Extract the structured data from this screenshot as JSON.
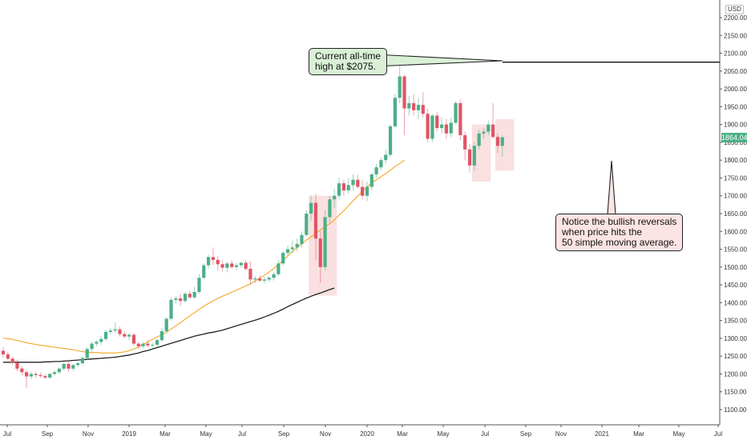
{
  "chart_data": {
    "type": "candlestick",
    "currency_badge": "USD",
    "last_price_label": "1864.04",
    "colors": {
      "up": "#4caf86",
      "down": "#e05567",
      "ma50": "#f5a623",
      "ma200": "#222222",
      "ath_line": "#111111",
      "highlight": "#f6c7c7",
      "price_tag": "#4caf86"
    },
    "y_ticks": [
      "2200.00",
      "2150.00",
      "2100.00",
      "2050.00",
      "2000.00",
      "1950.00",
      "1900.00",
      "1850.00",
      "1800.00",
      "1750.00",
      "1700.00",
      "1650.00",
      "1600.00",
      "1550.00",
      "1500.00",
      "1450.00",
      "1400.00",
      "1350.00",
      "1300.00",
      "1250.00",
      "1200.00",
      "1150.00",
      "1100.00"
    ],
    "x_ticks": [
      "Jul",
      "Sep",
      "Nov",
      "2019",
      "Mar",
      "May",
      "Jul",
      "Sep",
      "Nov",
      "2020",
      "Mar",
      "May",
      "Jul",
      "Sep",
      "Nov",
      "2021",
      "Mar",
      "May",
      "Jul"
    ],
    "ylim": [
      1070,
      2235
    ],
    "all_time_high": 2075,
    "candles": [
      {
        "o": 1265,
        "h": 1275,
        "l": 1245,
        "c": 1255
      },
      {
        "o": 1255,
        "h": 1262,
        "l": 1238,
        "c": 1243
      },
      {
        "o": 1243,
        "h": 1248,
        "l": 1225,
        "c": 1232
      },
      {
        "o": 1232,
        "h": 1240,
        "l": 1208,
        "c": 1215
      },
      {
        "o": 1215,
        "h": 1222,
        "l": 1196,
        "c": 1205
      },
      {
        "o": 1205,
        "h": 1213,
        "l": 1160,
        "c": 1193
      },
      {
        "o": 1193,
        "h": 1208,
        "l": 1185,
        "c": 1200
      },
      {
        "o": 1200,
        "h": 1206,
        "l": 1188,
        "c": 1197
      },
      {
        "o": 1197,
        "h": 1204,
        "l": 1190,
        "c": 1194
      },
      {
        "o": 1194,
        "h": 1200,
        "l": 1186,
        "c": 1190
      },
      {
        "o": 1190,
        "h": 1204,
        "l": 1186,
        "c": 1200
      },
      {
        "o": 1200,
        "h": 1210,
        "l": 1195,
        "c": 1205
      },
      {
        "o": 1205,
        "h": 1218,
        "l": 1200,
        "c": 1215
      },
      {
        "o": 1215,
        "h": 1233,
        "l": 1210,
        "c": 1228
      },
      {
        "o": 1228,
        "h": 1240,
        "l": 1205,
        "c": 1215
      },
      {
        "o": 1215,
        "h": 1228,
        "l": 1208,
        "c": 1225
      },
      {
        "o": 1225,
        "h": 1236,
        "l": 1220,
        "c": 1230
      },
      {
        "o": 1230,
        "h": 1250,
        "l": 1225,
        "c": 1245
      },
      {
        "o": 1245,
        "h": 1275,
        "l": 1240,
        "c": 1270
      },
      {
        "o": 1270,
        "h": 1290,
        "l": 1262,
        "c": 1285
      },
      {
        "o": 1285,
        "h": 1295,
        "l": 1278,
        "c": 1290
      },
      {
        "o": 1290,
        "h": 1305,
        "l": 1282,
        "c": 1298
      },
      {
        "o": 1298,
        "h": 1325,
        "l": 1292,
        "c": 1318
      },
      {
        "o": 1318,
        "h": 1330,
        "l": 1310,
        "c": 1322
      },
      {
        "o": 1322,
        "h": 1345,
        "l": 1315,
        "c": 1325
      },
      {
        "o": 1325,
        "h": 1332,
        "l": 1305,
        "c": 1312
      },
      {
        "o": 1312,
        "h": 1320,
        "l": 1300,
        "c": 1305
      },
      {
        "o": 1305,
        "h": 1315,
        "l": 1295,
        "c": 1310
      },
      {
        "o": 1310,
        "h": 1315,
        "l": 1280,
        "c": 1285
      },
      {
        "o": 1285,
        "h": 1290,
        "l": 1270,
        "c": 1278
      },
      {
        "o": 1278,
        "h": 1290,
        "l": 1272,
        "c": 1285
      },
      {
        "o": 1285,
        "h": 1295,
        "l": 1275,
        "c": 1280
      },
      {
        "o": 1280,
        "h": 1288,
        "l": 1270,
        "c": 1282
      },
      {
        "o": 1282,
        "h": 1300,
        "l": 1276,
        "c": 1295
      },
      {
        "o": 1295,
        "h": 1330,
        "l": 1290,
        "c": 1320
      },
      {
        "o": 1320,
        "h": 1360,
        "l": 1315,
        "c": 1355
      },
      {
        "o": 1355,
        "h": 1415,
        "l": 1350,
        "c": 1408
      },
      {
        "o": 1408,
        "h": 1420,
        "l": 1398,
        "c": 1412
      },
      {
        "o": 1412,
        "h": 1425,
        "l": 1392,
        "c": 1405
      },
      {
        "o": 1405,
        "h": 1430,
        "l": 1400,
        "c": 1425
      },
      {
        "o": 1425,
        "h": 1435,
        "l": 1410,
        "c": 1415
      },
      {
        "o": 1415,
        "h": 1445,
        "l": 1410,
        "c": 1430
      },
      {
        "o": 1430,
        "h": 1480,
        "l": 1425,
        "c": 1470
      },
      {
        "o": 1470,
        "h": 1510,
        "l": 1465,
        "c": 1505
      },
      {
        "o": 1505,
        "h": 1535,
        "l": 1495,
        "c": 1528
      },
      {
        "o": 1528,
        "h": 1555,
        "l": 1505,
        "c": 1520
      },
      {
        "o": 1520,
        "h": 1530,
        "l": 1490,
        "c": 1508
      },
      {
        "o": 1508,
        "h": 1520,
        "l": 1488,
        "c": 1498
      },
      {
        "o": 1498,
        "h": 1515,
        "l": 1485,
        "c": 1510
      },
      {
        "o": 1510,
        "h": 1520,
        "l": 1495,
        "c": 1500
      },
      {
        "o": 1500,
        "h": 1512,
        "l": 1492,
        "c": 1505
      },
      {
        "o": 1505,
        "h": 1515,
        "l": 1498,
        "c": 1512
      },
      {
        "o": 1512,
        "h": 1520,
        "l": 1490,
        "c": 1495
      },
      {
        "o": 1495,
        "h": 1515,
        "l": 1450,
        "c": 1465
      },
      {
        "o": 1465,
        "h": 1475,
        "l": 1455,
        "c": 1468
      },
      {
        "o": 1468,
        "h": 1478,
        "l": 1458,
        "c": 1462
      },
      {
        "o": 1462,
        "h": 1472,
        "l": 1455,
        "c": 1465
      },
      {
        "o": 1465,
        "h": 1475,
        "l": 1458,
        "c": 1470
      },
      {
        "o": 1470,
        "h": 1485,
        "l": 1462,
        "c": 1480
      },
      {
        "o": 1480,
        "h": 1520,
        "l": 1475,
        "c": 1510
      },
      {
        "o": 1510,
        "h": 1545,
        "l": 1505,
        "c": 1540
      },
      {
        "o": 1540,
        "h": 1560,
        "l": 1530,
        "c": 1550
      },
      {
        "o": 1550,
        "h": 1575,
        "l": 1540,
        "c": 1555
      },
      {
        "o": 1555,
        "h": 1580,
        "l": 1545,
        "c": 1565
      },
      {
        "o": 1565,
        "h": 1600,
        "l": 1555,
        "c": 1590
      },
      {
        "o": 1590,
        "h": 1660,
        "l": 1585,
        "c": 1650
      },
      {
        "o": 1650,
        "h": 1700,
        "l": 1630,
        "c": 1680
      },
      {
        "o": 1680,
        "h": 1705,
        "l": 1520,
        "c": 1580
      },
      {
        "o": 1580,
        "h": 1600,
        "l": 1455,
        "c": 1500
      },
      {
        "o": 1500,
        "h": 1660,
        "l": 1490,
        "c": 1640
      },
      {
        "o": 1640,
        "h": 1700,
        "l": 1625,
        "c": 1690
      },
      {
        "o": 1690,
        "h": 1720,
        "l": 1665,
        "c": 1700
      },
      {
        "o": 1700,
        "h": 1750,
        "l": 1690,
        "c": 1735
      },
      {
        "o": 1735,
        "h": 1745,
        "l": 1700,
        "c": 1715
      },
      {
        "o": 1715,
        "h": 1750,
        "l": 1705,
        "c": 1730
      },
      {
        "o": 1730,
        "h": 1760,
        "l": 1715,
        "c": 1745
      },
      {
        "o": 1745,
        "h": 1760,
        "l": 1720,
        "c": 1725
      },
      {
        "o": 1725,
        "h": 1745,
        "l": 1690,
        "c": 1700
      },
      {
        "o": 1700,
        "h": 1740,
        "l": 1685,
        "c": 1725
      },
      {
        "o": 1725,
        "h": 1765,
        "l": 1715,
        "c": 1760
      },
      {
        "o": 1760,
        "h": 1790,
        "l": 1750,
        "c": 1780
      },
      {
        "o": 1780,
        "h": 1808,
        "l": 1772,
        "c": 1800
      },
      {
        "o": 1800,
        "h": 1830,
        "l": 1790,
        "c": 1815
      },
      {
        "o": 1815,
        "h": 1900,
        "l": 1808,
        "c": 1895
      },
      {
        "o": 1895,
        "h": 1985,
        "l": 1890,
        "c": 1975
      },
      {
        "o": 1975,
        "h": 2075,
        "l": 1960,
        "c": 2035
      },
      {
        "o": 2035,
        "h": 2040,
        "l": 1870,
        "c": 1945
      },
      {
        "o": 1945,
        "h": 1980,
        "l": 1925,
        "c": 1960
      },
      {
        "o": 1960,
        "h": 1985,
        "l": 1925,
        "c": 1940
      },
      {
        "o": 1940,
        "h": 1975,
        "l": 1915,
        "c": 1955
      },
      {
        "o": 1955,
        "h": 1990,
        "l": 1920,
        "c": 1930
      },
      {
        "o": 1930,
        "h": 1945,
        "l": 1850,
        "c": 1860
      },
      {
        "o": 1860,
        "h": 1930,
        "l": 1850,
        "c": 1925
      },
      {
        "o": 1925,
        "h": 1935,
        "l": 1880,
        "c": 1890
      },
      {
        "o": 1890,
        "h": 1920,
        "l": 1875,
        "c": 1900
      },
      {
        "o": 1900,
        "h": 1915,
        "l": 1860,
        "c": 1875
      },
      {
        "o": 1875,
        "h": 1920,
        "l": 1865,
        "c": 1905
      },
      {
        "o": 1905,
        "h": 1965,
        "l": 1900,
        "c": 1960
      },
      {
        "o": 1960,
        "h": 1970,
        "l": 1855,
        "c": 1870
      },
      {
        "o": 1870,
        "h": 1880,
        "l": 1800,
        "c": 1830
      },
      {
        "o": 1830,
        "h": 1845,
        "l": 1765,
        "c": 1785
      },
      {
        "o": 1785,
        "h": 1850,
        "l": 1770,
        "c": 1840
      },
      {
        "o": 1840,
        "h": 1885,
        "l": 1830,
        "c": 1875
      },
      {
        "o": 1875,
        "h": 1890,
        "l": 1860,
        "c": 1880
      },
      {
        "o": 1880,
        "h": 1910,
        "l": 1870,
        "c": 1900
      },
      {
        "o": 1900,
        "h": 1960,
        "l": 1860,
        "c": 1865
      },
      {
        "o": 1865,
        "h": 1875,
        "l": 1820,
        "c": 1840
      },
      {
        "o": 1840,
        "h": 1870,
        "l": 1810,
        "c": 1864
      }
    ],
    "ma50": [
      1301,
      1299,
      1297,
      1294,
      1291,
      1288,
      1285,
      1283,
      1281,
      1279,
      1277,
      1275,
      1273,
      1272,
      1270,
      1268,
      1265,
      1263,
      1261,
      1260,
      1260,
      1259,
      1259,
      1259,
      1259,
      1260,
      1262,
      1265,
      1270,
      1276,
      1283,
      1290,
      1297,
      1304,
      1310,
      1317,
      1326,
      1335,
      1344,
      1354,
      1363,
      1372,
      1381,
      1390,
      1398,
      1405,
      1412,
      1418,
      1424,
      1429,
      1435,
      1441,
      1447,
      1453,
      1461,
      1469,
      1477,
      1486,
      1496,
      1507,
      1519,
      1531,
      1543,
      1555,
      1565,
      1576,
      1585,
      1594,
      1604,
      1613,
      1622,
      1633,
      1645,
      1658,
      1672,
      1686,
      1699,
      1713,
      1725,
      1736,
      1745,
      1754,
      1762,
      1772,
      1782,
      1790,
      1800
    ],
    "ma200": [
      1233,
      1233,
      1233,
      1233,
      1233,
      1233,
      1233,
      1233,
      1233,
      1234,
      1234,
      1235,
      1235,
      1236,
      1237,
      1238,
      1239,
      1240,
      1241,
      1242,
      1243,
      1244,
      1245,
      1246,
      1247,
      1249,
      1251,
      1253,
      1256,
      1259,
      1263,
      1266,
      1270,
      1274,
      1278,
      1282,
      1286,
      1290,
      1294,
      1298,
      1302,
      1306,
      1309,
      1312,
      1315,
      1317,
      1320,
      1323,
      1327,
      1331,
      1335,
      1339,
      1343,
      1347,
      1351,
      1355,
      1360,
      1365,
      1370,
      1376,
      1382,
      1389,
      1395,
      1401,
      1407,
      1413,
      1418,
      1423,
      1427,
      1432,
      1437,
      1441
    ],
    "annotations": [
      {
        "text": "Current all-time\nhigh at $2075."
      },
      {
        "text": "Notice the bullish reversals\nwhen price hits the\n50 simple moving average."
      }
    ]
  }
}
